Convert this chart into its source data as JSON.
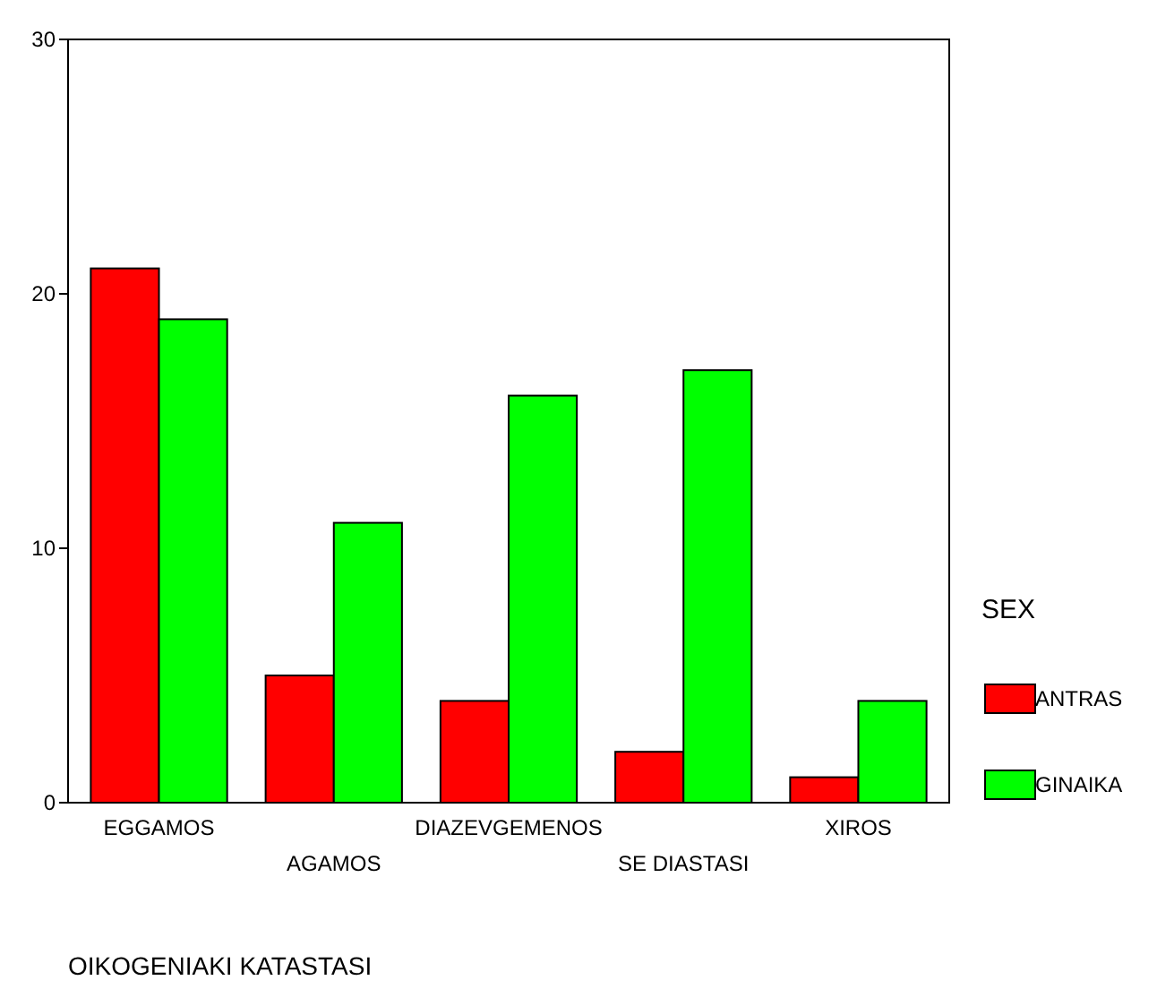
{
  "chart_data": {
    "type": "bar",
    "categories": [
      "EGGAMOS",
      "AGAMOS",
      "DIAZEVGEMENOS",
      "SE DIASTASI",
      "XIROS"
    ],
    "series": [
      {
        "name": "ANTRAS",
        "color": "#ff0000",
        "values": [
          21,
          5,
          4,
          2,
          1
        ]
      },
      {
        "name": "GINAIKA",
        "color": "#00ff00",
        "values": [
          19,
          11,
          16,
          17,
          4
        ]
      }
    ],
    "ylim": [
      0,
      30
    ],
    "yticks": [
      0,
      10,
      20,
      30
    ],
    "xlabel": "OIKOGENIAKI KATASTASI",
    "legend_title": "SEX",
    "legend": "right",
    "grid": false
  }
}
